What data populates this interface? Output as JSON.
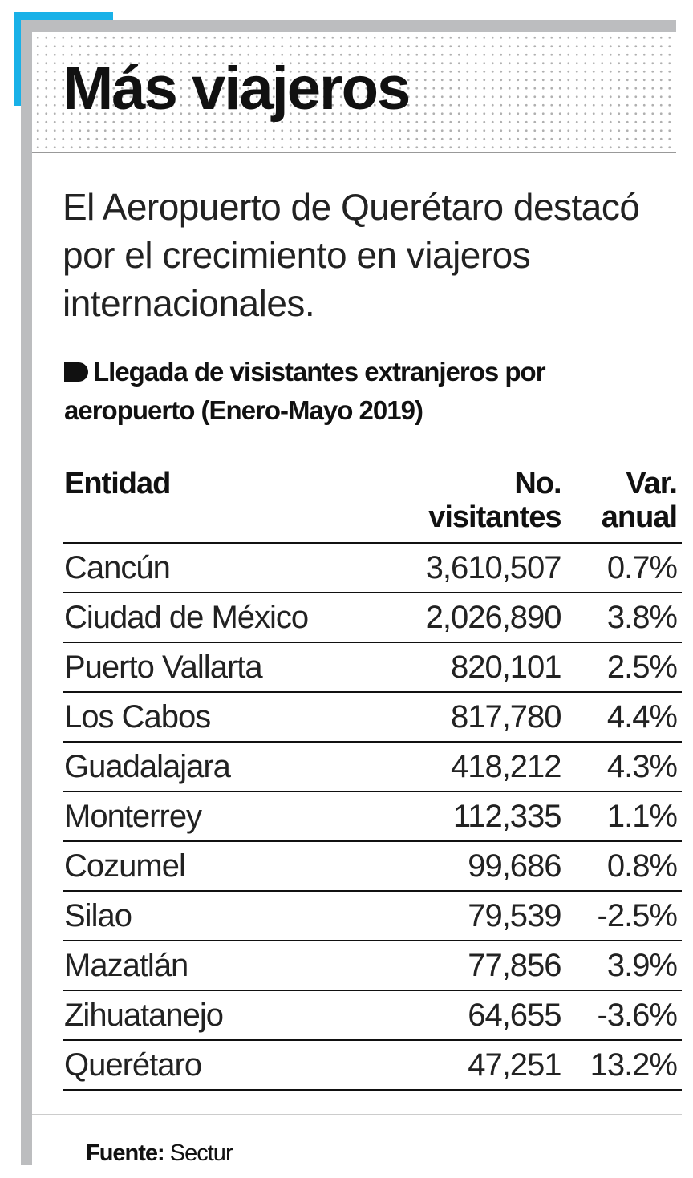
{
  "title": "Más viajeros",
  "subtitle": "El Aeropuerto de Querétaro destacó por el crecimiento en viajeros internacionales.",
  "colors": {
    "accent": "#19b1e8",
    "frame": "#bcbdbf"
  },
  "chart_data": {
    "type": "table",
    "title": "Llegada de visistantes extranjeros por aeropuerto (Enero-Mayo 2019)",
    "columns": [
      "Entidad",
      "No. visitantes",
      "Var. anual"
    ],
    "rows": [
      [
        "Cancún",
        "3,610,507",
        "0.7%"
      ],
      [
        "Ciudad de México",
        "2,026,890",
        "3.8%"
      ],
      [
        "Puerto Vallarta",
        "820,101",
        "2.5%"
      ],
      [
        "Los Cabos",
        "817,780",
        "4.4%"
      ],
      [
        "Guadalajara",
        "418,212",
        "4.3%"
      ],
      [
        "Monterrey",
        "112,335",
        "1.1%"
      ],
      [
        "Cozumel",
        "99,686",
        "0.8%"
      ],
      [
        "Silao",
        "79,539",
        "-2.5%"
      ],
      [
        "Mazatlán",
        "77,856",
        "3.9%"
      ],
      [
        "Zihuatanejo",
        "64,655",
        "-3.6%"
      ],
      [
        "Querétaro",
        "47,251",
        "13.2%"
      ]
    ]
  },
  "footer": {
    "label": "Fuente:",
    "value": "Sectur"
  }
}
